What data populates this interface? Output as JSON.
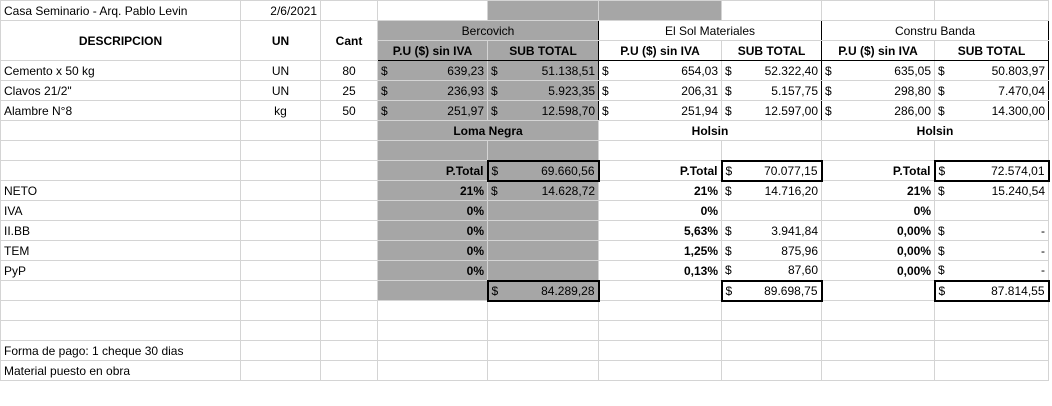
{
  "title": "Casa Seminario - Arq. Pablo Levin",
  "date": "2/6/2021",
  "headers": {
    "descripcion": "DESCRIPCION",
    "un": "UN",
    "cant": "Cant",
    "pu": "P.U ($) sin IVA",
    "subtotal": "SUB TOTAL"
  },
  "suppliers": [
    "Bercovich",
    "El Sol Materiales",
    "Constru Banda"
  ],
  "brands": [
    "Loma Negra",
    "Holsin",
    "Holsin"
  ],
  "currency": "$",
  "items": [
    {
      "desc": "Cemento x 50 kg",
      "un": "UN",
      "cant": "80",
      "prices": [
        {
          "pu": "639,23",
          "sub": "51.138,51"
        },
        {
          "pu": "654,03",
          "sub": "52.322,40"
        },
        {
          "pu": "635,05",
          "sub": "50.803,97"
        }
      ]
    },
    {
      "desc": "Clavos 21/2\"",
      "un": "UN",
      "cant": "25",
      "prices": [
        {
          "pu": "236,93",
          "sub": "5.923,35"
        },
        {
          "pu": "206,31",
          "sub": "5.157,75"
        },
        {
          "pu": "298,80",
          "sub": "7.470,04"
        }
      ]
    },
    {
      "desc": "Alambre N°8",
      "un": "kg",
      "cant": "50",
      "prices": [
        {
          "pu": "251,97",
          "sub": "12.598,70"
        },
        {
          "pu": "251,94",
          "sub": "12.597,00"
        },
        {
          "pu": "286,00",
          "sub": "14.300,00"
        }
      ]
    }
  ],
  "ptotal_label": "P.Total",
  "ptotals": [
    "69.660,56",
    "70.077,15",
    "72.574,01"
  ],
  "taxes": [
    {
      "label": "NETO",
      "values": [
        {
          "pct": "21%",
          "amt": "14.628,72"
        },
        {
          "pct": "21%",
          "amt": "14.716,20"
        },
        {
          "pct": "21%",
          "amt": "15.240,54"
        }
      ]
    },
    {
      "label": "IVA",
      "values": [
        {
          "pct": "0%",
          "amt": ""
        },
        {
          "pct": "0%",
          "amt": ""
        },
        {
          "pct": "0%",
          "amt": ""
        }
      ]
    },
    {
      "label": "II.BB",
      "values": [
        {
          "pct": "0%",
          "amt": ""
        },
        {
          "pct": "5,63%",
          "amt": "3.941,84"
        },
        {
          "pct": "0,00%",
          "amt": "-"
        }
      ]
    },
    {
      "label": "TEM",
      "values": [
        {
          "pct": "0%",
          "amt": ""
        },
        {
          "pct": "1,25%",
          "amt": "875,96"
        },
        {
          "pct": "0,00%",
          "amt": "-"
        }
      ]
    },
    {
      "label": "PyP",
      "values": [
        {
          "pct": "0%",
          "amt": ""
        },
        {
          "pct": "0,13%",
          "amt": "87,60"
        },
        {
          "pct": "0,00%",
          "amt": "-"
        }
      ]
    }
  ],
  "grand_totals": [
    "84.289,28",
    "89.698,75",
    "87.814,55"
  ],
  "notes": [
    "Forma de pago: 1 cheque 30 dias",
    "Material puesto en obra"
  ]
}
